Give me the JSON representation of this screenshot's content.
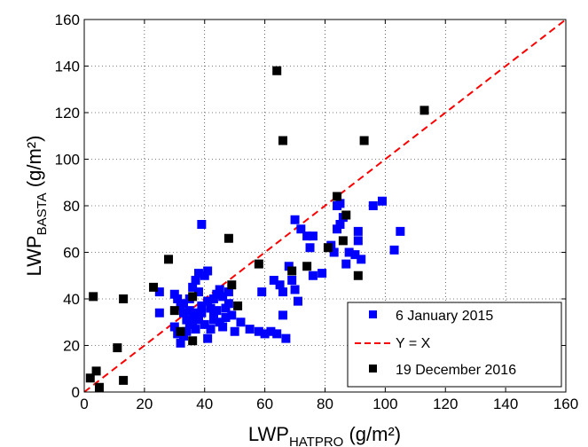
{
  "chart_data": {
    "type": "scatter",
    "xlabel": {
      "main": "LWP",
      "sub": "HATPRO",
      "unit": " (g/m²)"
    },
    "ylabel": {
      "main": "LWP",
      "sub": "BASTA",
      "unit": " (g/m²)"
    },
    "xlim": [
      0,
      160
    ],
    "ylim": [
      0,
      160
    ],
    "xticks": [
      "0",
      "20",
      "40",
      "60",
      "80",
      "100",
      "120",
      "140",
      "160"
    ],
    "yticks": [
      "0",
      "20",
      "40",
      "60",
      "80",
      "100",
      "120",
      "140",
      "160"
    ],
    "grid": true,
    "grid_style": "dotted",
    "legend_position": "bottom-right",
    "reference_line": {
      "name": "Y = X",
      "color": "#ff0000",
      "style": "dashed",
      "points": [
        [
          0,
          0
        ],
        [
          160,
          160
        ]
      ]
    },
    "series": [
      {
        "name": "6 January 2015",
        "color": "#0000ff",
        "marker": "square",
        "points": [
          [
            25,
            43
          ],
          [
            25,
            34
          ],
          [
            30,
            42
          ],
          [
            31,
            40
          ],
          [
            32,
            37
          ],
          [
            33,
            34
          ],
          [
            34,
            31
          ],
          [
            35,
            35
          ],
          [
            36,
            30
          ],
          [
            36,
            45
          ],
          [
            37,
            48
          ],
          [
            38,
            51
          ],
          [
            39,
            72
          ],
          [
            40,
            50
          ],
          [
            41,
            52
          ],
          [
            42,
            36
          ],
          [
            43,
            40
          ],
          [
            44,
            42
          ],
          [
            45,
            44
          ],
          [
            46,
            41
          ],
          [
            47,
            32
          ],
          [
            48,
            38
          ],
          [
            49,
            33
          ],
          [
            50,
            26
          ],
          [
            30,
            28
          ],
          [
            31,
            25
          ],
          [
            32,
            21
          ],
          [
            33,
            24
          ],
          [
            34,
            26
          ],
          [
            35,
            29
          ],
          [
            36,
            33
          ],
          [
            37,
            27
          ],
          [
            38,
            31
          ],
          [
            39,
            34
          ],
          [
            40,
            29
          ],
          [
            41,
            23
          ],
          [
            42,
            27
          ],
          [
            43,
            31
          ],
          [
            44,
            35
          ],
          [
            45,
            30
          ],
          [
            46,
            28
          ],
          [
            47,
            36
          ],
          [
            48,
            43
          ],
          [
            52,
            30
          ],
          [
            55,
            27
          ],
          [
            58,
            26
          ],
          [
            59,
            43
          ],
          [
            60,
            25
          ],
          [
            62,
            26
          ],
          [
            63,
            48
          ],
          [
            64,
            25
          ],
          [
            65,
            46
          ],
          [
            66,
            43
          ],
          [
            66,
            33
          ],
          [
            67,
            23
          ],
          [
            68,
            54
          ],
          [
            69,
            48
          ],
          [
            70,
            44
          ],
          [
            71,
            39
          ],
          [
            70,
            74
          ],
          [
            72,
            70
          ],
          [
            74,
            67
          ],
          [
            75,
            62
          ],
          [
            76,
            50
          ],
          [
            76,
            67
          ],
          [
            79,
            51
          ],
          [
            82,
            63
          ],
          [
            83,
            60
          ],
          [
            84,
            70
          ],
          [
            84,
            80
          ],
          [
            85,
            72
          ],
          [
            85,
            81
          ],
          [
            86,
            75
          ],
          [
            87,
            55
          ],
          [
            88,
            60
          ],
          [
            90,
            59
          ],
          [
            91,
            65
          ],
          [
            91,
            69
          ],
          [
            92,
            57
          ],
          [
            96,
            80
          ],
          [
            99,
            82
          ],
          [
            103,
            61
          ],
          [
            105,
            69
          ],
          [
            37,
            34
          ],
          [
            39,
            37
          ],
          [
            41,
            39
          ],
          [
            35,
            40
          ],
          [
            33,
            38
          ],
          [
            43,
            33
          ],
          [
            38,
            43
          ]
        ]
      },
      {
        "name": "19 December 2016",
        "color": "#000000",
        "marker": "square",
        "points": [
          [
            2,
            6
          ],
          [
            3,
            41
          ],
          [
            4,
            9
          ],
          [
            5,
            2
          ],
          [
            11,
            19
          ],
          [
            13,
            5
          ],
          [
            13,
            40
          ],
          [
            23,
            45
          ],
          [
            28,
            57
          ],
          [
            30,
            35
          ],
          [
            32,
            26
          ],
          [
            36,
            41
          ],
          [
            36,
            22
          ],
          [
            48,
            66
          ],
          [
            49,
            46
          ],
          [
            51,
            37
          ],
          [
            58,
            55
          ],
          [
            64,
            138
          ],
          [
            66,
            108
          ],
          [
            69,
            52
          ],
          [
            74,
            54
          ],
          [
            81,
            62
          ],
          [
            84,
            84
          ],
          [
            86,
            65
          ],
          [
            87,
            76
          ],
          [
            91,
            50
          ],
          [
            93,
            108
          ],
          [
            113,
            121
          ]
        ]
      }
    ]
  }
}
